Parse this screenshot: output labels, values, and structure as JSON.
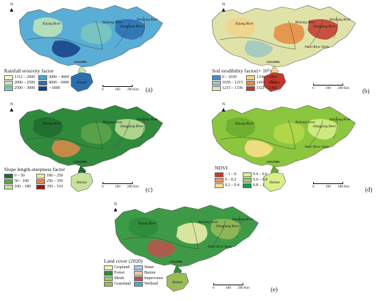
{
  "panels": [
    {
      "label": "(a)",
      "legend_title": "Rainfall erosivity factor",
      "legend": [
        {
          "text": "1312 – 2000",
          "color": "#f3f7c9"
        },
        {
          "text": "3000 – 4000",
          "color": "#4aa6cf"
        },
        {
          "text": "2000 – 2500",
          "color": "#c4e5b6"
        },
        {
          "text": "4000 – 6000",
          "color": "#2b6fb0"
        },
        {
          "text": "2500 – 3000",
          "color": "#7cc8c0"
        },
        {
          "text": "> 6000",
          "color": "#163f86"
        }
      ],
      "base_color": "#5aaed6",
      "blobs": [
        "#c4e5b6",
        "#7cc8c0",
        "#2b6fb0",
        "#163f86"
      ],
      "rivers": [
        "Xijiang River",
        "Beijiang River",
        "Dongjiang River",
        "Hanjiang River"
      ],
      "places": [
        "Hainan",
        "CEGZMG"
      ],
      "scale": [
        "0",
        "100",
        "200 Km"
      ]
    },
    {
      "label": "(b)",
      "legend_title": "Soil erodibility factor(× 10⁵)",
      "legend": [
        {
          "text": "0 – 1039",
          "color": "#4f86c6"
        },
        {
          "text": "1336 – 1410",
          "color": "#f5d28a"
        },
        {
          "text": "1039 – 1215",
          "color": "#9fc7c4"
        },
        {
          "text": "1410 – 1521",
          "color": "#e8893f"
        },
        {
          "text": "1215 – 1336",
          "color": "#dfe8b2"
        },
        {
          "text": "1521 – 2365",
          "color": "#c0382b"
        }
      ],
      "base_color": "#dfe3a8",
      "blobs": [
        "#f5d28a",
        "#e8893f",
        "#c0382b",
        "#9fc7c4"
      ],
      "rivers": [
        "Xijiang River",
        "Beijiang River",
        "Dongjiang River",
        "Hanjiang River",
        "Pearl River Delta"
      ],
      "places": [
        "Hainan",
        "CEGZMG"
      ],
      "scale": [
        "0",
        "100",
        "200 Km"
      ]
    },
    {
      "label": "(c)",
      "legend_title": "Slope length-steepness factor",
      "legend": [
        {
          "text": "0 – 50",
          "color": "#1f6b2f"
        },
        {
          "text": "180 – 250",
          "color": "#f6e7a0"
        },
        {
          "text": "50 – 100",
          "color": "#5ea64a"
        },
        {
          "text": "250 – 350",
          "color": "#e08a48"
        },
        {
          "text": "100 – 180",
          "color": "#c6e29b"
        },
        {
          "text": "350 – 510",
          "color": "#8e1a1a"
        }
      ],
      "base_color": "#2f8a3c",
      "blobs": [
        "#1f6b2f",
        "#5ea64a",
        "#c6e29b",
        "#e08a48"
      ],
      "rivers": [
        "Xijiang River",
        "Beijiang River",
        "Dongjiang River",
        "Hanjiang River"
      ],
      "places": [
        "Hainan",
        "CEGZMG"
      ],
      "scale": [
        "0",
        "100",
        "200 Km"
      ]
    },
    {
      "label": "(d)",
      "legend_title": "NDVI",
      "legend": [
        {
          "text": "– 1 – 0",
          "color": "#d73027"
        },
        {
          "text": "0.4 – 0.6",
          "color": "#d9ef8b"
        },
        {
          "text": "0 – 0.2",
          "color": "#fc8d59"
        },
        {
          "text": "0.6 – 0.8",
          "color": "#91cf60"
        },
        {
          "text": "0.2 – 0.4",
          "color": "#fee08b"
        },
        {
          "text": "0.8 – 1",
          "color": "#1a9850"
        }
      ],
      "base_color": "#8cc63f",
      "blobs": [
        "#6aab2e",
        "#b5d94a",
        "#d9ef8b",
        "#fee08b"
      ],
      "rivers": [
        "Xijiang River",
        "Beijiang River",
        "Dongjiang River",
        "Hanjiang River",
        "Pearl River Delta"
      ],
      "places": [
        "Hainan",
        "CEGZMG"
      ],
      "scale": [
        "0",
        "100",
        "200 Km"
      ]
    },
    {
      "label": "(e)",
      "legend_title": "Land cover (2020)",
      "legend": [
        {
          "text": "Cropland",
          "color": "#f2f2b0"
        },
        {
          "text": "Water",
          "color": "#a9c8f0"
        },
        {
          "text": "Forest",
          "color": "#2e8b3a"
        },
        {
          "text": "Barren",
          "color": "#e8c8a8"
        },
        {
          "text": "Shrub",
          "color": "#8fd14f"
        },
        {
          "text": "Impervious",
          "color": "#c0504d"
        },
        {
          "text": "Grassland",
          "color": "#9bbb59"
        },
        {
          "text": "Wetland",
          "color": "#4bacc6"
        }
      ],
      "base_color": "#3f9a47",
      "blobs": [
        "#2e8b3a",
        "#f2f2b0",
        "#9bbb59",
        "#c0504d"
      ],
      "rivers": [
        "Xijiang River",
        "Beijiang River",
        "Dongjiang River",
        "Hanjiang River",
        "Pearl River Delta"
      ],
      "places": [
        "Hainan",
        "CEGZMG"
      ],
      "scale": [
        "0",
        "100",
        "200 Km"
      ]
    }
  ],
  "north_label": "N"
}
